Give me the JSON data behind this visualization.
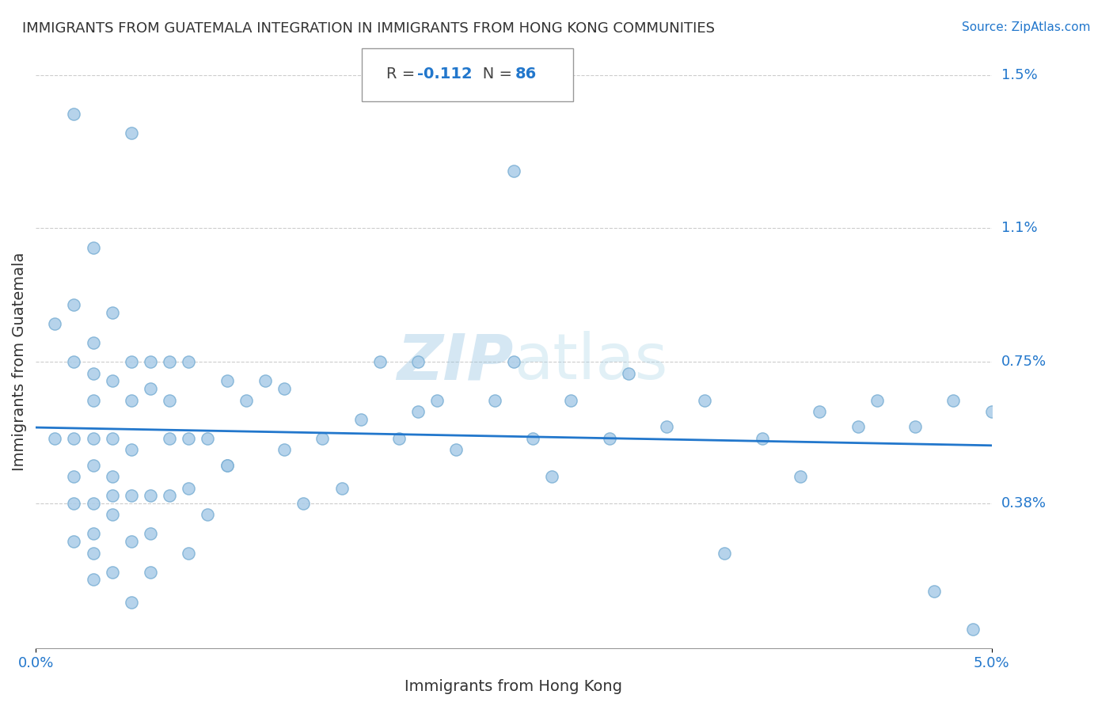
{
  "title": "IMMIGRANTS FROM GUATEMALA INTEGRATION IN IMMIGRANTS FROM HONG KONG COMMUNITIES",
  "source": "Source: ZipAtlas.com",
  "xlabel": "Immigrants from Hong Kong",
  "ylabel": "Immigrants from Guatemala",
  "R": -0.112,
  "N": 86,
  "xlim": [
    0.0,
    0.05
  ],
  "ylim": [
    0.0,
    0.015
  ],
  "x_ticks": [
    0.0,
    0.05
  ],
  "x_tick_labels": [
    "0.0%",
    "5.0%"
  ],
  "y_ticks": [
    0.0038,
    0.0075,
    0.011,
    0.015
  ],
  "y_tick_labels": [
    "0.38%",
    "0.75%",
    "1.1%",
    "1.5%"
  ],
  "background_color": "#ffffff",
  "dot_color": "#aacce8",
  "dot_edge_color": "#7aafd4",
  "line_color": "#2277cc",
  "grid_color": "#cccccc",
  "title_color": "#333333",
  "annotation_color": "#2277cc",
  "watermark_color_zip": "#4499cc",
  "watermark_color_atlas": "#aaccdd",
  "scatter_x": [
    0.001,
    0.001,
    0.002,
    0.002,
    0.002,
    0.002,
    0.002,
    0.002,
    0.003,
    0.003,
    0.003,
    0.003,
    0.003,
    0.003,
    0.003,
    0.003,
    0.003,
    0.004,
    0.004,
    0.004,
    0.004,
    0.004,
    0.004,
    0.004,
    0.005,
    0.005,
    0.005,
    0.005,
    0.005,
    0.005,
    0.006,
    0.006,
    0.006,
    0.006,
    0.006,
    0.007,
    0.007,
    0.007,
    0.007,
    0.008,
    0.008,
    0.008,
    0.008,
    0.009,
    0.009,
    0.01,
    0.01,
    0.011,
    0.012,
    0.013,
    0.013,
    0.014,
    0.015,
    0.016,
    0.017,
    0.018,
    0.019,
    0.02,
    0.021,
    0.022,
    0.024,
    0.025,
    0.026,
    0.027,
    0.028,
    0.03,
    0.031,
    0.033,
    0.035,
    0.036,
    0.038,
    0.04,
    0.041,
    0.043,
    0.044,
    0.046,
    0.047,
    0.048,
    0.049,
    0.05,
    0.002,
    0.003,
    0.005,
    0.01,
    0.02,
    0.025
  ],
  "scatter_y": [
    0.0085,
    0.0055,
    0.009,
    0.0075,
    0.0055,
    0.0045,
    0.0038,
    0.0028,
    0.008,
    0.0072,
    0.0065,
    0.0055,
    0.0048,
    0.0038,
    0.003,
    0.0025,
    0.0018,
    0.0088,
    0.007,
    0.0055,
    0.0045,
    0.004,
    0.0035,
    0.002,
    0.0075,
    0.0065,
    0.0052,
    0.004,
    0.0028,
    0.0012,
    0.0075,
    0.0068,
    0.004,
    0.003,
    0.002,
    0.0075,
    0.0065,
    0.0055,
    0.004,
    0.0075,
    0.0055,
    0.0042,
    0.0025,
    0.0055,
    0.0035,
    0.007,
    0.0048,
    0.0065,
    0.007,
    0.0068,
    0.0052,
    0.0038,
    0.0055,
    0.0042,
    0.006,
    0.0075,
    0.0055,
    0.0075,
    0.0065,
    0.0052,
    0.0065,
    0.0075,
    0.0055,
    0.0045,
    0.0065,
    0.0055,
    0.0072,
    0.0058,
    0.0065,
    0.0025,
    0.0055,
    0.0045,
    0.0062,
    0.0058,
    0.0065,
    0.0058,
    0.0015,
    0.0065,
    0.0005,
    0.0062,
    0.014,
    0.0105,
    0.0135,
    0.0048,
    0.0062,
    0.0125
  ]
}
